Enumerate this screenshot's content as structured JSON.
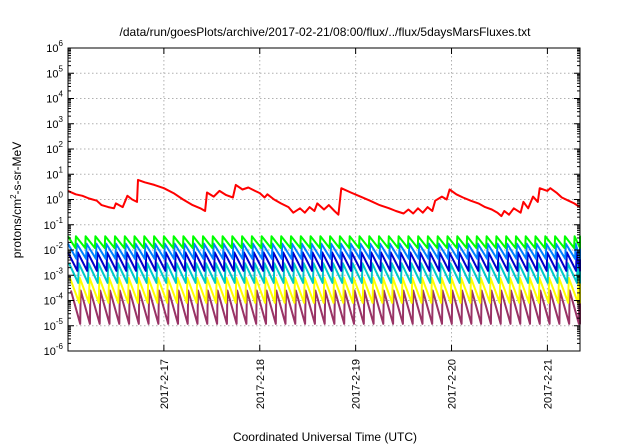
{
  "chart_data": {
    "type": "line",
    "title": "/data/run/goesPlots/archive/2017-02-21/08:00/flux/../flux/5daysMarsFluxes.txt",
    "xlabel": "Coordinated Universal Time (UTC)",
    "ylabel": {
      "base": "protons/cm",
      "sup": "2",
      "rest": "-s-sr-MeV"
    },
    "yscale": "log",
    "ylim": [
      1e-06,
      1000000.0
    ],
    "xlim": [
      16.0,
      21.34
    ],
    "grid": true,
    "x_ticks": [
      {
        "x": 17,
        "label": "2017-2-17"
      },
      {
        "x": 18,
        "label": "2017-2-18"
      },
      {
        "x": 19,
        "label": "2017-2-19"
      },
      {
        "x": 20,
        "label": "2017-2-20"
      },
      {
        "x": 21,
        "label": "2017-2-21"
      }
    ],
    "y_ticks": [
      {
        "value": 1e-06,
        "base": "10",
        "exp": "-6"
      },
      {
        "value": 1e-05,
        "base": "10",
        "exp": "-5"
      },
      {
        "value": 0.0001,
        "base": "10",
        "exp": "-4"
      },
      {
        "value": 0.001,
        "base": "10",
        "exp": "-3"
      },
      {
        "value": 0.01,
        "base": "10",
        "exp": "-2"
      },
      {
        "value": 0.1,
        "base": "10",
        "exp": "-1"
      },
      {
        "value": 1,
        "base": "10",
        "exp": "0"
      },
      {
        "value": 10,
        "base": "10",
        "exp": "1"
      },
      {
        "value": 100,
        "base": "10",
        "exp": "2"
      },
      {
        "value": 1000,
        "base": "10",
        "exp": "3"
      },
      {
        "value": 10000,
        "base": "10",
        "exp": "4"
      },
      {
        "value": 100000,
        "base": "10",
        "exp": "5"
      },
      {
        "value": 1000000,
        "base": "10",
        "exp": "6"
      }
    ],
    "series": [
      {
        "color": "#ff0000",
        "points": [
          [
            16.0,
            2.2
          ],
          [
            16.08,
            1.6
          ],
          [
            16.15,
            1.4
          ],
          [
            16.22,
            1.1
          ],
          [
            16.3,
            0.9
          ],
          [
            16.35,
            0.6
          ],
          [
            16.42,
            0.5
          ],
          [
            16.48,
            0.45
          ],
          [
            16.5,
            0.7
          ],
          [
            16.57,
            0.5
          ],
          [
            16.62,
            1.4
          ],
          [
            16.67,
            1.0
          ],
          [
            16.72,
            0.8
          ],
          [
            16.73,
            6.0
          ],
          [
            16.8,
            4.8
          ],
          [
            16.9,
            3.8
          ],
          [
            17.0,
            2.8
          ],
          [
            17.1,
            1.8
          ],
          [
            17.2,
            1.0
          ],
          [
            17.3,
            0.6
          ],
          [
            17.38,
            0.45
          ],
          [
            17.43,
            0.35
          ],
          [
            17.45,
            1.9
          ],
          [
            17.52,
            1.3
          ],
          [
            17.58,
            2.2
          ],
          [
            17.65,
            1.5
          ],
          [
            17.72,
            1.2
          ],
          [
            17.75,
            3.8
          ],
          [
            17.82,
            2.5
          ],
          [
            17.88,
            3.0
          ],
          [
            17.95,
            2.2
          ],
          [
            18.0,
            1.8
          ],
          [
            18.05,
            1.2
          ],
          [
            18.08,
            1.6
          ],
          [
            18.15,
            1.0
          ],
          [
            18.22,
            0.7
          ],
          [
            18.3,
            0.5
          ],
          [
            18.35,
            0.3
          ],
          [
            18.42,
            0.45
          ],
          [
            18.47,
            0.3
          ],
          [
            18.52,
            0.5
          ],
          [
            18.57,
            0.35
          ],
          [
            18.6,
            0.7
          ],
          [
            18.67,
            0.4
          ],
          [
            18.72,
            0.6
          ],
          [
            18.78,
            0.35
          ],
          [
            18.82,
            0.25
          ],
          [
            18.85,
            2.8
          ],
          [
            18.95,
            1.9
          ],
          [
            19.05,
            1.3
          ],
          [
            19.15,
            0.9
          ],
          [
            19.25,
            0.6
          ],
          [
            19.35,
            0.45
          ],
          [
            19.42,
            0.35
          ],
          [
            19.5,
            0.28
          ],
          [
            19.55,
            0.4
          ],
          [
            19.6,
            0.28
          ],
          [
            19.65,
            0.45
          ],
          [
            19.7,
            0.3
          ],
          [
            19.75,
            0.5
          ],
          [
            19.8,
            0.35
          ],
          [
            19.83,
            0.9
          ],
          [
            19.9,
            1.3
          ],
          [
            19.95,
            1.0
          ],
          [
            19.98,
            2.5
          ],
          [
            20.05,
            1.6
          ],
          [
            20.12,
            1.2
          ],
          [
            20.2,
            0.9
          ],
          [
            20.28,
            0.7
          ],
          [
            20.35,
            0.5
          ],
          [
            20.42,
            0.4
          ],
          [
            20.48,
            0.3
          ],
          [
            20.52,
            0.22
          ],
          [
            20.55,
            0.35
          ],
          [
            20.6,
            0.25
          ],
          [
            20.65,
            0.45
          ],
          [
            20.72,
            0.3
          ],
          [
            20.75,
            0.8
          ],
          [
            20.8,
            0.45
          ],
          [
            20.85,
            1.3
          ],
          [
            20.9,
            0.8
          ],
          [
            20.92,
            2.8
          ],
          [
            21.0,
            2.2
          ],
          [
            21.03,
            2.8
          ],
          [
            21.1,
            1.8
          ],
          [
            21.15,
            1.2
          ],
          [
            21.22,
            0.9
          ],
          [
            21.28,
            0.7
          ],
          [
            21.34,
            0.5
          ]
        ]
      },
      {
        "color": "#00ff00",
        "sawtooth": {
          "period": 0.102,
          "start": 15.98,
          "high": 0.035,
          "low": 0.012
        }
      },
      {
        "color": "#0080ff",
        "sawtooth": {
          "period": 0.102,
          "start": 15.99,
          "high": 0.018,
          "low": 0.0045
        }
      },
      {
        "color": "#0000cc",
        "sawtooth": {
          "period": 0.102,
          "start": 16.0,
          "high": 0.008,
          "low": 0.0015
        }
      },
      {
        "color": "#00c8c8",
        "sawtooth": {
          "period": 0.102,
          "start": 16.01,
          "high": 0.003,
          "low": 0.0005
        }
      },
      {
        "color": "#ffff00",
        "sawtooth": {
          "period": 0.102,
          "start": 16.02,
          "high": 0.0008,
          "low": 8e-05
        }
      },
      {
        "color": "#993366",
        "sawtooth": {
          "period": 0.102,
          "start": 16.03,
          "high": 0.00025,
          "low": 1.2e-05
        }
      }
    ]
  }
}
